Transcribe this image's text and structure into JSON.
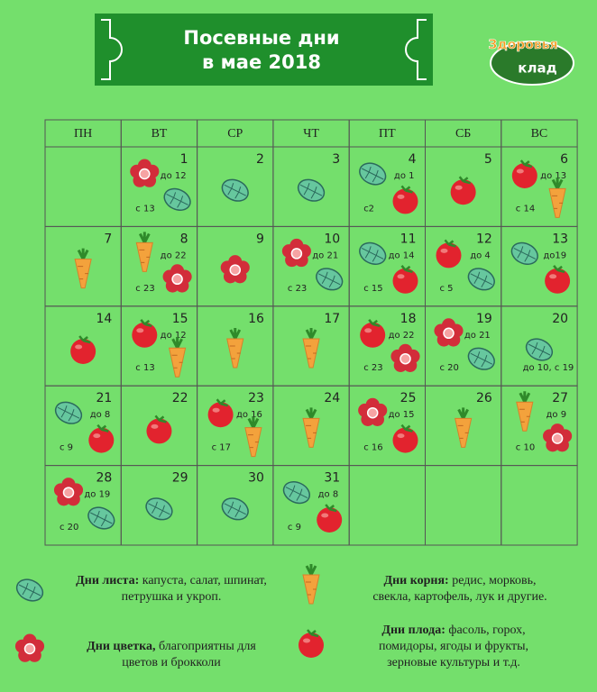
{
  "header": {
    "title_line1": "Посевные дни",
    "title_line2": "в мае 2018"
  },
  "logo": {
    "line1": "Здоровья",
    "line2": "клад"
  },
  "weekdays": [
    "ПН",
    "ВТ",
    "СР",
    "ЧТ",
    "ПТ",
    "СБ",
    "ВС"
  ],
  "days": [
    {
      "number": 1,
      "until": "до 12",
      "from": "с 13"
    },
    {
      "number": 2
    },
    {
      "number": 3
    },
    {
      "number": 4,
      "until": "до 1",
      "from": "с2"
    },
    {
      "number": 5
    },
    {
      "number": 6,
      "until": "до 13",
      "from": "с 14"
    },
    {
      "number": 7
    },
    {
      "number": 8,
      "until": "до 22",
      "from": "с 23"
    },
    {
      "number": 9
    },
    {
      "number": 10,
      "until": "до 21",
      "from": "с 23"
    },
    {
      "number": 11,
      "until": "до 14",
      "from": "с 15"
    },
    {
      "number": 12,
      "until": "до 4",
      "from": "с 5"
    },
    {
      "number": 13,
      "until": "до19"
    },
    {
      "number": 14
    },
    {
      "number": 15,
      "until": "до 12",
      "from": "с 13"
    },
    {
      "number": 16
    },
    {
      "number": 17
    },
    {
      "number": 18,
      "until": "до 22",
      "from": "с 23"
    },
    {
      "number": 19,
      "until": "до 21",
      "from": "с 20"
    },
    {
      "number": 20,
      "from": "до 10, с 19"
    },
    {
      "number": 21,
      "until": "до 8",
      "from": "с 9"
    },
    {
      "number": 22
    },
    {
      "number": 23,
      "until": "до 16",
      "from": "с 17"
    },
    {
      "number": 24
    },
    {
      "number": 25,
      "until": "до 15",
      "from": "с 16"
    },
    {
      "number": 26
    },
    {
      "number": 27,
      "until": "до 9",
      "from": "с 10"
    },
    {
      "number": 28,
      "until": "до 19",
      "from": "с 20"
    },
    {
      "number": 29
    },
    {
      "number": 30
    },
    {
      "number": 31,
      "until": "до 8",
      "from": "с 9"
    }
  ],
  "legend": [
    {
      "label": "Дни листа:",
      "lines": [
        " капуста, салат, шпинат,",
        "петрушка и укроп."
      ]
    },
    {
      "label": "Дни корня:",
      "lines": [
        " редис, морковь,",
        "свекла, картофель, лук и другие."
      ]
    },
    {
      "label": "Дни цветка,",
      "lines": [
        " благоприятны для",
        "цветов и брокколи"
      ]
    },
    {
      "label": "Дни плода:",
      "lines": [
        " фасоль, горох,",
        "помидоры, ягоды и фрукты,",
        "зерновые культуры и т.д."
      ]
    }
  ]
}
